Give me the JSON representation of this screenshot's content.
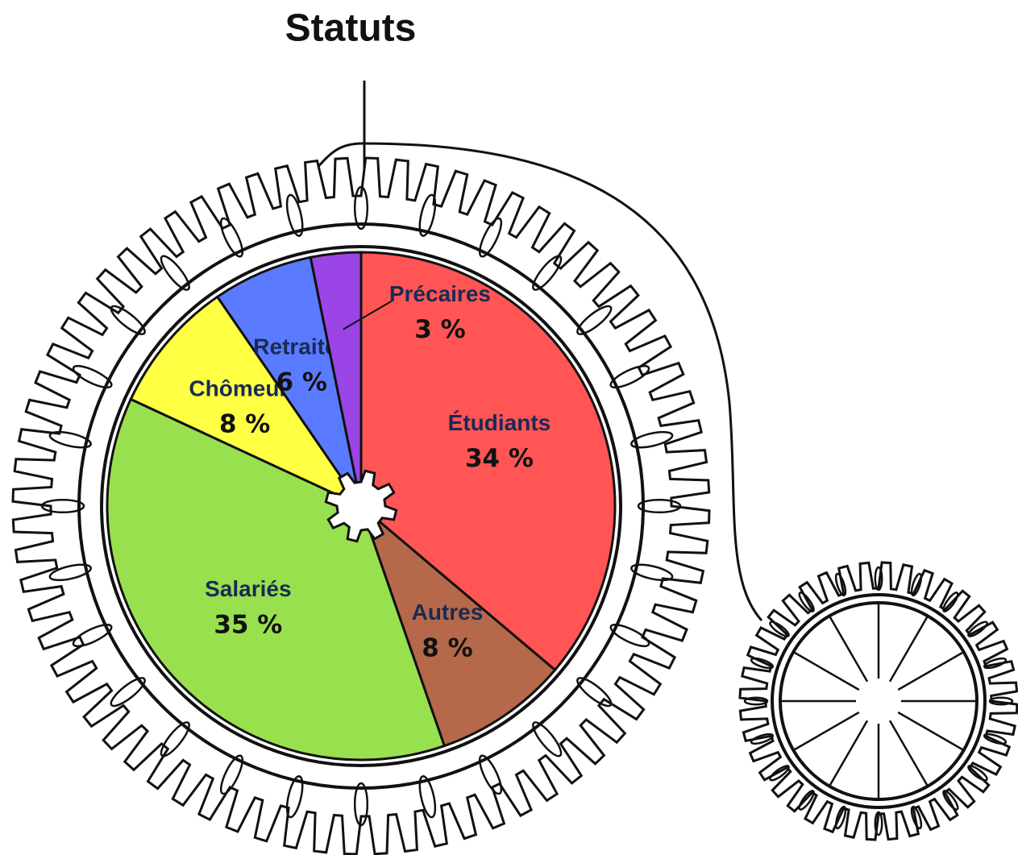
{
  "chart_data": {
    "type": "pie",
    "title": "Statuts",
    "categories": [
      "Étudiants",
      "Autres",
      "Salariés",
      "Chômeurs",
      "Retraités",
      "Précaires"
    ],
    "values": [
      34,
      8,
      35,
      8,
      6,
      3
    ],
    "value_labels": [
      "34 %",
      "8 %",
      "35 %",
      "8 %",
      "6 %",
      "3 %"
    ],
    "colors": [
      "#ff5555",
      "#b5694a",
      "#99e04f",
      "#ffff44",
      "#5a7bff",
      "#9b45e6"
    ]
  }
}
